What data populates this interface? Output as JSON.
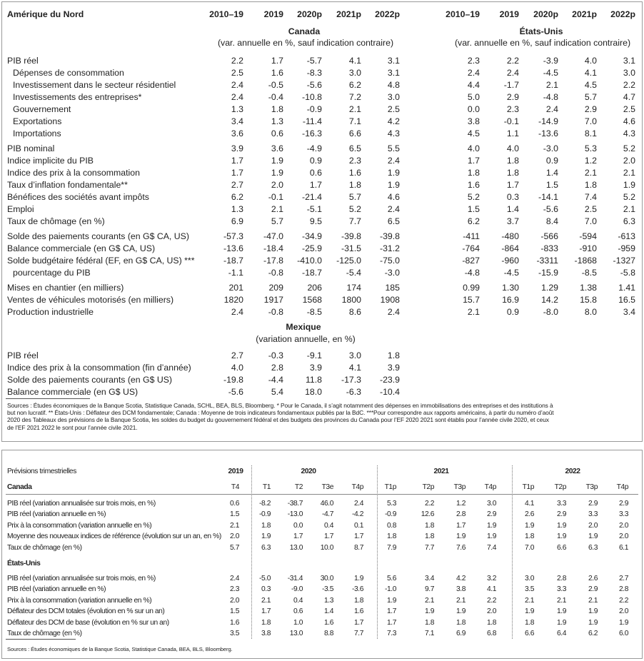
{
  "annual": {
    "title": "Amérique du Nord",
    "years": [
      "2010–19",
      "2019",
      "2020p",
      "2021p",
      "2022p"
    ],
    "canada": {
      "name": "Canada",
      "note": "(var. annuelle en %, sauf indication contraire)"
    },
    "united_states": {
      "name": "États-Unis",
      "note": "(var. annuelle en %, sauf indication contraire)"
    },
    "groups": [
      [
        {
          "label": "PIB réel",
          "canada": [
            "2.2",
            "1.7",
            "-5.7",
            "4.1",
            "3.1"
          ],
          "united_states": [
            "2.3",
            "2.2",
            "-3.9",
            "4.0",
            "3.1"
          ]
        },
        {
          "label": "Dépenses de consommation",
          "indent": true,
          "canada": [
            "2.5",
            "1.6",
            "-8.3",
            "3.0",
            "3.1"
          ],
          "united_states": [
            "2.4",
            "2.4",
            "-4.5",
            "4.1",
            "3.0"
          ]
        },
        {
          "label": "Investissement dans le secteur résidentiel",
          "indent": true,
          "canada": [
            "2.4",
            "-0.5",
            "-5.6",
            "6.2",
            "4.8"
          ],
          "united_states": [
            "4.4",
            "-1.7",
            "2.1",
            "4.5",
            "2.2"
          ]
        },
        {
          "label": "Investissements des entreprises*",
          "indent": true,
          "canada": [
            "2.4",
            "-0.4",
            "-10.8",
            "7.2",
            "3.0"
          ],
          "united_states": [
            "5.0",
            "2.9",
            "-4.8",
            "5.7",
            "4.7"
          ]
        },
        {
          "label": "Gouvernement",
          "indent": true,
          "canada": [
            "1.3",
            "1.8",
            "-0.9",
            "2.1",
            "2.5"
          ],
          "united_states": [
            "0.0",
            "2.3",
            "2.4",
            "2.9",
            "2.5"
          ]
        },
        {
          "label": "Exportations",
          "indent": true,
          "canada": [
            "3.4",
            "1.3",
            "-11.4",
            "7.1",
            "4.2"
          ],
          "united_states": [
            "3.8",
            "-0.1",
            "-14.9",
            "7.0",
            "4.6"
          ]
        },
        {
          "label": "Importations",
          "indent": true,
          "canada": [
            "3.6",
            "0.6",
            "-16.3",
            "6.6",
            "4.3"
          ],
          "united_states": [
            "4.5",
            "1.1",
            "-13.6",
            "8.1",
            "4.3"
          ]
        }
      ],
      [
        {
          "label": "PIB nominal",
          "canada": [
            "3.9",
            "3.6",
            "-4.9",
            "6.5",
            "5.5"
          ],
          "united_states": [
            "4.0",
            "4.0",
            "-3.0",
            "5.3",
            "5.2"
          ]
        },
        {
          "label": "Indice implicite du PIB",
          "canada": [
            "1.7",
            "1.9",
            "0.9",
            "2.3",
            "2.4"
          ],
          "united_states": [
            "1.7",
            "1.8",
            "0.9",
            "1.2",
            "2.0"
          ]
        },
        {
          "label": "Indice des prix à la consommation",
          "canada": [
            "1.7",
            "1.9",
            "0.6",
            "1.6",
            "1.9"
          ],
          "united_states": [
            "1.8",
            "1.8",
            "1.4",
            "2.1",
            "2.1"
          ]
        },
        {
          "label": "Taux d’inflation fondamentale**",
          "canada": [
            "2.7",
            "2.0",
            "1.7",
            "1.8",
            "1.9"
          ],
          "united_states": [
            "1.6",
            "1.7",
            "1.5",
            "1.8",
            "1.9"
          ]
        },
        {
          "label": "Bénéfices des sociétés avant impôts",
          "canada": [
            "6.2",
            "-0.1",
            "-21.4",
            "5.7",
            "4.6"
          ],
          "united_states": [
            "5.2",
            "0.3",
            "-14.1",
            "7.4",
            "5.2"
          ]
        },
        {
          "label": "Emploi",
          "canada": [
            "1.3",
            "2.1",
            "-5.1",
            "5.2",
            "2.4"
          ],
          "united_states": [
            "1.5",
            "1.4",
            "-5.6",
            "2.5",
            "2.1"
          ]
        },
        {
          "label": "Taux de chômage (en %)",
          "canada": [
            "6.9",
            "5.7",
            "9.5",
            "7.7",
            "6.5"
          ],
          "united_states": [
            "6.2",
            "3.7",
            "8.4",
            "7.0",
            "6.3"
          ]
        }
      ],
      [
        {
          "label": "Solde des paiements courants (en G$ CA, US)",
          "canada": [
            "-57.3",
            "-47.0",
            "-34.9",
            "-39.8",
            "-39.8"
          ],
          "united_states": [
            "-411",
            "-480",
            "-566",
            "-594",
            "-613"
          ]
        },
        {
          "label": "Balance commerciale (en G$ CA, US)",
          "canada": [
            "-13.6",
            "-18.4",
            "-25.9",
            "-31.5",
            "-31.2"
          ],
          "united_states": [
            "-764",
            "-864",
            "-833",
            "-910",
            "-959"
          ]
        },
        {
          "label": "Solde budgétaire fédéral (EF, en G$ CA, US) ***",
          "canada": [
            "-18.7",
            "-17.8",
            "-410.0",
            "-125.0",
            "-75.0"
          ],
          "united_states": [
            "-827",
            "-960",
            "-3311",
            "-1868",
            "-1327"
          ]
        },
        {
          "label": "pourcentage du PIB",
          "indent": true,
          "canada": [
            "-1.1",
            "-0.8",
            "-18.7",
            "-5.4",
            "-3.0"
          ],
          "united_states": [
            "-4.8",
            "-4.5",
            "-15.9",
            "-8.5",
            "-5.8"
          ]
        }
      ],
      [
        {
          "label": "Mises en chantier (en milliers)",
          "canada": [
            "201",
            "209",
            "206",
            "174",
            "185"
          ],
          "united_states": [
            "0.99",
            "1.30",
            "1.29",
            "1.38",
            "1.41"
          ]
        },
        {
          "label": "Ventes de véhicules motorisés (en milliers)",
          "canada": [
            "1820",
            "1917",
            "1568",
            "1800",
            "1908"
          ],
          "united_states": [
            "15.7",
            "16.9",
            "14.2",
            "15.8",
            "16.5"
          ]
        },
        {
          "label": "Production industrielle",
          "canada": [
            "2.4",
            "-0.8",
            "-8.5",
            "8.6",
            "2.4"
          ],
          "united_states": [
            "2.1",
            "0.9",
            "-8.0",
            "8.0",
            "3.4"
          ]
        }
      ]
    ],
    "mexico": {
      "name": "Mexique",
      "note": "(variation annuelle, en %)",
      "rows": [
        {
          "label": "PIB réel",
          "values": [
            "2.7",
            "-0.3",
            "-9.1",
            "3.0",
            "1.8"
          ]
        },
        {
          "label": "Indice des prix à la consommation (fin d’année)",
          "values": [
            "4.0",
            "2.8",
            "3.9",
            "4.1",
            "3.9"
          ]
        },
        {
          "label": "Solde des paiements courants (en G$ US)",
          "values": [
            "-19.8",
            "-4.4",
            "11.8",
            "-17.3",
            "-23.9"
          ]
        },
        {
          "label": "Balance commerciale (en G$ US)",
          "values": [
            "-5.6",
            "5.4",
            "18.0",
            "-6.3",
            "-10.4"
          ]
        }
      ]
    },
    "footnote": "Sources : Études économiques de la Banque Scotia, Statistique Canada, SCHL, BEA, BLS, Bloomberg. * Pour le Canada, il s’agit notamment des dépenses en immobilisations des entreprises et des institutions à but non lucratif. ** États-Unis : Déflateur des DCM fondamentale; Canada : Moyenne de trois indicateurs fondamentaux publiés par la BdC. ***Pour correspondre aux rapports américains, à partir du numéro d’août 2020 des Tableaux des prévisions de la Banque Scotia, les soldes du budget du gouvernement fédéral et des budgets des provinces du Canada pour l’EF 2020 2021 sont établis pour l’année civile 2020, et ceux de l’EF 2021 2022 le sont pour l’année civile 2021."
  },
  "quarterly": {
    "title": "Prévisions trimestrielles",
    "years": [
      "2019",
      "2020",
      "2021",
      "2022"
    ],
    "quarters": [
      [
        "T4"
      ],
      [
        "T1",
        "T2",
        "T3e",
        "T4p"
      ],
      [
        "T1p",
        "T2p",
        "T3p",
        "T4p"
      ],
      [
        "T1p",
        "T2p",
        "T3p",
        "T4p"
      ]
    ],
    "sections": [
      {
        "name": "Canada",
        "rows": [
          {
            "label": "PIB réel (variation annualisée sur trois mois, en %)",
            "values": [
              [
                "0.6"
              ],
              [
                "-8.2",
                "-38.7",
                "46.0",
                "2.4"
              ],
              [
                "5.3",
                "2.2",
                "1.2",
                "3.0"
              ],
              [
                "4.1",
                "3.3",
                "2.9",
                "2.9"
              ]
            ]
          },
          {
            "label": "PIB réel (variation annuelle en %)",
            "values": [
              [
                "1.5"
              ],
              [
                "-0.9",
                "-13.0",
                "-4.7",
                "-4.2"
              ],
              [
                "-0.9",
                "12.6",
                "2.8",
                "2.9"
              ],
              [
                "2.6",
                "2.9",
                "3.3",
                "3.3"
              ]
            ]
          },
          {
            "label": "Prix à la consommation (variation annuelle en %)",
            "values": [
              [
                "2.1"
              ],
              [
                "1.8",
                "0.0",
                "0.4",
                "0.1"
              ],
              [
                "0.8",
                "1.8",
                "1.7",
                "1.9"
              ],
              [
                "1.9",
                "1.9",
                "2.0",
                "2.0"
              ]
            ]
          },
          {
            "label": "Moyenne des nouveaux indices de référence (évolution sur un an, en %)",
            "values": [
              [
                "2.0"
              ],
              [
                "1.9",
                "1.7",
                "1.7",
                "1.7"
              ],
              [
                "1.8",
                "1.8",
                "1.9",
                "1.9"
              ],
              [
                "1.8",
                "1.9",
                "1.9",
                "2.0"
              ]
            ]
          },
          {
            "label": "Taux de chômage (en %)",
            "values": [
              [
                "5.7"
              ],
              [
                "6.3",
                "13.0",
                "10.0",
                "8.7"
              ],
              [
                "7.9",
                "7.7",
                "7.6",
                "7.4"
              ],
              [
                "7.0",
                "6.6",
                "6.3",
                "6.1"
              ]
            ]
          }
        ]
      },
      {
        "name": "États-Unis",
        "rows": [
          {
            "label": "PIB réel (variation annualisée sur trois mois, en %)",
            "values": [
              [
                "2.4"
              ],
              [
                "-5.0",
                "-31.4",
                "30.0",
                "1.9"
              ],
              [
                "5.6",
                "3.4",
                "4.2",
                "3.2"
              ],
              [
                "3.0",
                "2.8",
                "2.6",
                "2.7"
              ]
            ]
          },
          {
            "label": "PIB réel (variation annuelle en %)",
            "values": [
              [
                "2.3"
              ],
              [
                "0.3",
                "-9.0",
                "-3.5",
                "-3.6"
              ],
              [
                "-1.0",
                "9.7",
                "3.8",
                "4.1"
              ],
              [
                "3.5",
                "3.3",
                "2.9",
                "2.8"
              ]
            ]
          },
          {
            "label": "Prix à la consommation (variation annuelle en %)",
            "values": [
              [
                "2.0"
              ],
              [
                "2.1",
                "0.4",
                "1.3",
                "1.8"
              ],
              [
                "1.9",
                "2.1",
                "2.1",
                "2.2"
              ],
              [
                "2.1",
                "2.1",
                "2.1",
                "2.2"
              ]
            ]
          },
          {
            "label": "Déflateur des DCM totales (évolution en % sur un an)",
            "values": [
              [
                "1.5"
              ],
              [
                "1.7",
                "0.6",
                "1.4",
                "1.6"
              ],
              [
                "1.7",
                "1.9",
                "1.9",
                "2.0"
              ],
              [
                "1.9",
                "1.9",
                "1.9",
                "2.0"
              ]
            ]
          },
          {
            "label": "Déflateur des DCM de base (évolution en % sur un an)",
            "values": [
              [
                "1.6"
              ],
              [
                "1.8",
                "1.0",
                "1.6",
                "1.7"
              ],
              [
                "1.7",
                "1.8",
                "1.8",
                "1.8"
              ],
              [
                "1.8",
                "1.9",
                "1.9",
                "1.9"
              ]
            ]
          },
          {
            "label": "Taux de chômage (en %)",
            "values": [
              [
                "3.5"
              ],
              [
                "3.8",
                "13.0",
                "8.8",
                "7.7"
              ],
              [
                "7.3",
                "7.1",
                "6.9",
                "6.8"
              ],
              [
                "6.6",
                "6.4",
                "6.2",
                "6.0"
              ]
            ]
          }
        ]
      }
    ],
    "source": "Sources : Études économiques de la Banque Scotia, Statistique Canada, BEA, BLS, Bloomberg."
  }
}
